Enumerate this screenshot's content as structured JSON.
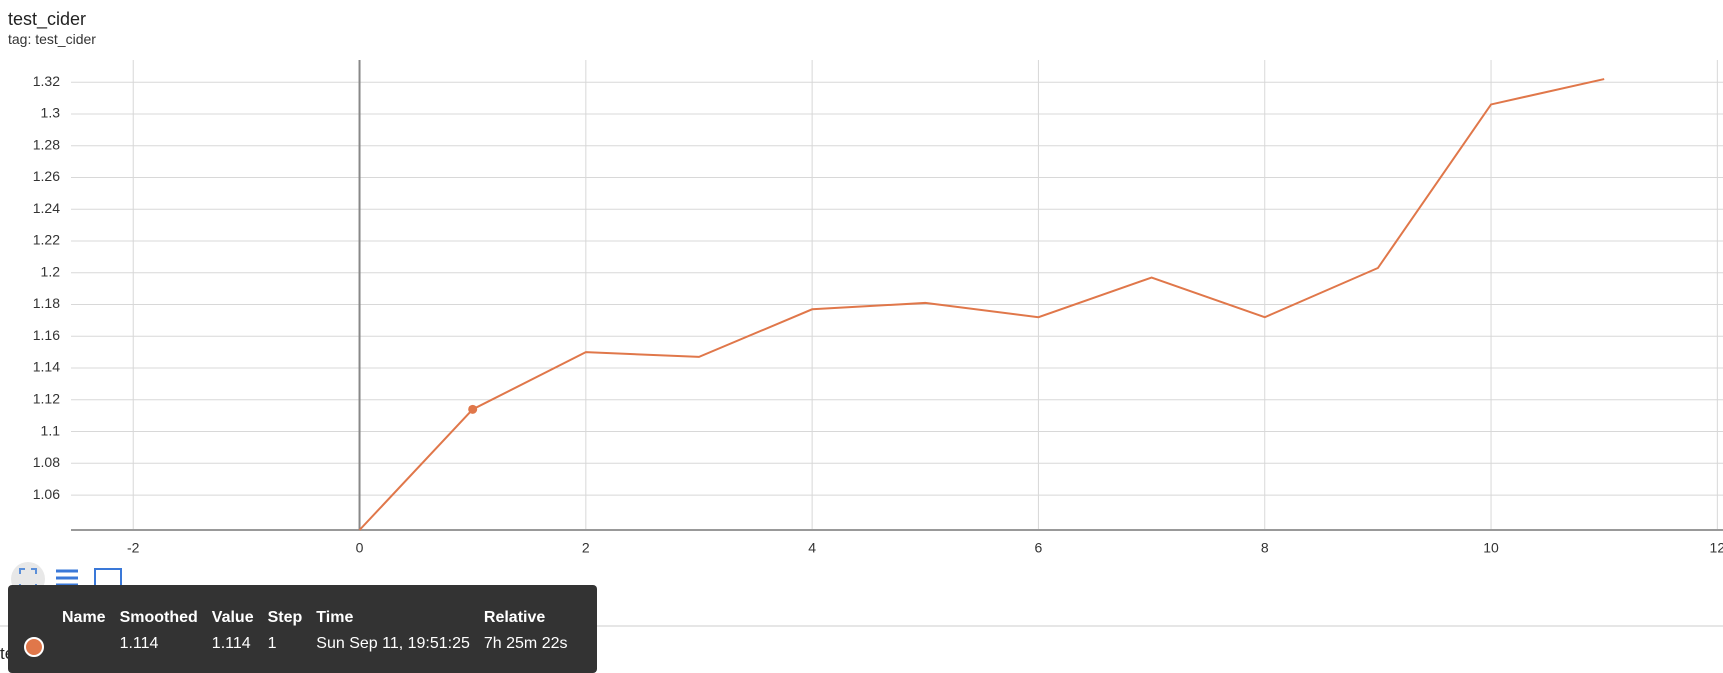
{
  "chart_data": {
    "type": "line",
    "title": "test_cider",
    "subtitle": "tag: test_cider",
    "x": [
      0,
      1,
      2,
      3,
      4,
      5,
      6,
      7,
      8,
      9,
      10,
      11
    ],
    "values": [
      1.038,
      1.114,
      1.15,
      1.147,
      1.177,
      1.181,
      1.172,
      1.197,
      1.172,
      1.203,
      1.306,
      1.322
    ],
    "color": "#e0774a",
    "xlim": [
      -2.55,
      12.05
    ],
    "xticks": [
      -2,
      0,
      2,
      4,
      6,
      8,
      10,
      12
    ],
    "ylim": [
      1.038,
      1.334
    ],
    "yticks": [
      1.06,
      1.08,
      1.1,
      1.12,
      1.14,
      1.16,
      1.18,
      1.2,
      1.22,
      1.24,
      1.26,
      1.28,
      1.3,
      1.32
    ],
    "grid": true
  },
  "tooltip": {
    "headers": [
      "Name",
      "Smoothed",
      "Value",
      "Step",
      "Time",
      "Relative"
    ],
    "row": [
      "",
      "1.114",
      "1.114",
      1,
      "Sun Sep 11, 19:51:25",
      "7h 25m 22s"
    ]
  },
  "next_card": {
    "title": "test_meteor"
  }
}
